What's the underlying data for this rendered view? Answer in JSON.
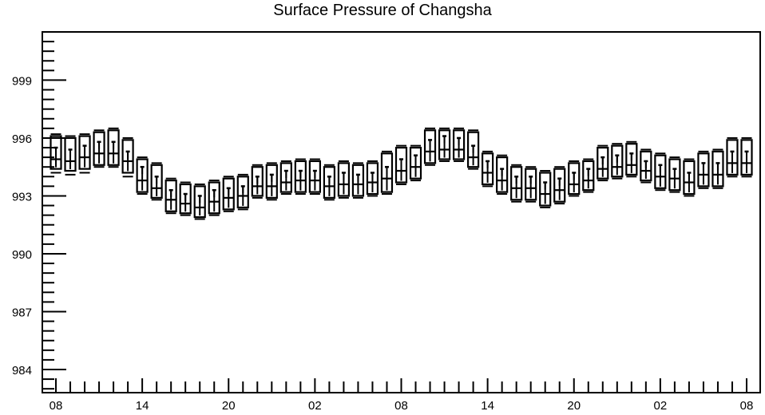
{
  "chart_data": {
    "type": "boxplot",
    "title": "Surface Pressure of Changsha",
    "xlabel": "",
    "ylabel": "",
    "ylim": [
      982.8,
      1001.5
    ],
    "yticks": [
      "984",
      "987",
      "990",
      "993",
      "996",
      "999"
    ],
    "xtick_labels": [
      "08",
      "14",
      "20",
      "02",
      "08",
      "14",
      "20",
      "02",
      "08"
    ],
    "x_hours": [
      0,
      48
    ],
    "grid": false,
    "boxes": [
      {
        "x": 0,
        "min": 994.2,
        "q1": 994.4,
        "median": 994.9,
        "q3": 996.1,
        "max": 996.2,
        "mean": 995.5
      },
      {
        "x": 1,
        "min": 994.1,
        "q1": 994.3,
        "median": 994.8,
        "q3": 996.0,
        "max": 996.1,
        "mean": 995.4
      },
      {
        "x": 2,
        "min": 994.2,
        "q1": 994.4,
        "median": 995.0,
        "q3": 996.1,
        "max": 996.2,
        "mean": 995.6
      },
      {
        "x": 3,
        "min": 994.5,
        "q1": 994.6,
        "median": 995.2,
        "q3": 996.3,
        "max": 996.4,
        "mean": 995.8
      },
      {
        "x": 4,
        "min": 994.5,
        "q1": 994.6,
        "median": 995.2,
        "q3": 996.4,
        "max": 996.5,
        "mean": 995.8
      },
      {
        "x": 5,
        "min": 994.0,
        "q1": 994.2,
        "median": 994.8,
        "q3": 995.9,
        "max": 996.0,
        "mean": 995.3
      },
      {
        "x": 6,
        "min": 993.1,
        "q1": 993.2,
        "median": 993.8,
        "q3": 994.9,
        "max": 995.0,
        "mean": 994.5
      },
      {
        "x": 7,
        "min": 992.8,
        "q1": 992.9,
        "median": 993.4,
        "q3": 994.6,
        "max": 994.7,
        "mean": 994.0
      },
      {
        "x": 8,
        "min": 992.1,
        "q1": 992.2,
        "median": 992.8,
        "q3": 993.8,
        "max": 993.9,
        "mean": 993.3
      },
      {
        "x": 9,
        "min": 992.0,
        "q1": 992.1,
        "median": 992.6,
        "q3": 993.6,
        "max": 993.7,
        "mean": 993.1
      },
      {
        "x": 10,
        "min": 991.8,
        "q1": 991.9,
        "median": 992.4,
        "q3": 993.5,
        "max": 993.6,
        "mean": 993.0
      },
      {
        "x": 11,
        "min": 992.0,
        "q1": 992.1,
        "median": 992.7,
        "q3": 993.7,
        "max": 993.8,
        "mean": 993.3
      },
      {
        "x": 12,
        "min": 992.2,
        "q1": 992.3,
        "median": 992.9,
        "q3": 993.9,
        "max": 994.0,
        "mean": 993.4
      },
      {
        "x": 13,
        "min": 992.3,
        "q1": 992.4,
        "median": 993.0,
        "q3": 994.0,
        "max": 994.1,
        "mean": 993.5
      },
      {
        "x": 14,
        "min": 992.9,
        "q1": 993.0,
        "median": 993.5,
        "q3": 994.5,
        "max": 994.6,
        "mean": 994.0
      },
      {
        "x": 15,
        "min": 992.8,
        "q1": 992.9,
        "median": 993.5,
        "q3": 994.6,
        "max": 994.7,
        "mean": 994.1
      },
      {
        "x": 16,
        "min": 993.1,
        "q1": 993.2,
        "median": 993.7,
        "q3": 994.7,
        "max": 994.8,
        "mean": 994.3
      },
      {
        "x": 17,
        "min": 993.1,
        "q1": 993.2,
        "median": 993.8,
        "q3": 994.8,
        "max": 994.9,
        "mean": 994.3
      },
      {
        "x": 18,
        "min": 993.1,
        "q1": 993.2,
        "median": 993.8,
        "q3": 994.8,
        "max": 994.9,
        "mean": 994.3
      },
      {
        "x": 19,
        "min": 992.8,
        "q1": 992.9,
        "median": 993.5,
        "q3": 994.5,
        "max": 994.6,
        "mean": 994.0
      },
      {
        "x": 20,
        "min": 992.9,
        "q1": 993.0,
        "median": 993.6,
        "q3": 994.7,
        "max": 994.8,
        "mean": 994.2
      },
      {
        "x": 21,
        "min": 992.9,
        "q1": 993.0,
        "median": 993.6,
        "q3": 994.6,
        "max": 994.7,
        "mean": 994.1
      },
      {
        "x": 22,
        "min": 993.0,
        "q1": 993.1,
        "median": 993.7,
        "q3": 994.7,
        "max": 994.8,
        "mean": 994.2
      },
      {
        "x": 23,
        "min": 993.1,
        "q1": 993.2,
        "median": 993.9,
        "q3": 995.2,
        "max": 995.3,
        "mean": 994.5
      },
      {
        "x": 24,
        "min": 993.6,
        "q1": 993.7,
        "median": 994.3,
        "q3": 995.5,
        "max": 995.6,
        "mean": 994.9
      },
      {
        "x": 25,
        "min": 993.8,
        "q1": 993.9,
        "median": 994.5,
        "q3": 995.5,
        "max": 995.6,
        "mean": 995.1
      },
      {
        "x": 26,
        "min": 994.6,
        "q1": 994.7,
        "median": 995.3,
        "q3": 996.4,
        "max": 996.5,
        "mean": 995.9
      },
      {
        "x": 27,
        "min": 994.8,
        "q1": 994.9,
        "median": 995.4,
        "q3": 996.4,
        "max": 996.5,
        "mean": 996.1
      },
      {
        "x": 28,
        "min": 994.8,
        "q1": 994.9,
        "median": 995.4,
        "q3": 996.4,
        "max": 996.5,
        "mean": 996.0
      },
      {
        "x": 29,
        "min": 994.4,
        "q1": 994.5,
        "median": 995.0,
        "q3": 996.3,
        "max": 996.4,
        "mean": 995.6
      },
      {
        "x": 30,
        "min": 993.5,
        "q1": 993.6,
        "median": 994.2,
        "q3": 995.2,
        "max": 995.3,
        "mean": 994.8
      },
      {
        "x": 31,
        "min": 993.1,
        "q1": 993.2,
        "median": 993.8,
        "q3": 995.0,
        "max": 995.1,
        "mean": 994.4
      },
      {
        "x": 32,
        "min": 992.7,
        "q1": 992.8,
        "median": 993.4,
        "q3": 994.5,
        "max": 994.6,
        "mean": 994.0
      },
      {
        "x": 33,
        "min": 992.7,
        "q1": 992.8,
        "median": 993.4,
        "q3": 994.4,
        "max": 994.5,
        "mean": 994.0
      },
      {
        "x": 34,
        "min": 992.4,
        "q1": 992.5,
        "median": 993.1,
        "q3": 994.2,
        "max": 994.3,
        "mean": 993.7
      },
      {
        "x": 35,
        "min": 992.6,
        "q1": 992.7,
        "median": 993.3,
        "q3": 994.4,
        "max": 994.5,
        "mean": 993.9
      },
      {
        "x": 36,
        "min": 993.0,
        "q1": 993.1,
        "median": 993.6,
        "q3": 994.7,
        "max": 994.8,
        "mean": 994.2
      },
      {
        "x": 37,
        "min": 993.2,
        "q1": 993.3,
        "median": 993.8,
        "q3": 994.8,
        "max": 994.9,
        "mean": 994.4
      },
      {
        "x": 38,
        "min": 993.8,
        "q1": 993.9,
        "median": 994.4,
        "q3": 995.5,
        "max": 995.6,
        "mean": 995.0
      },
      {
        "x": 39,
        "min": 993.9,
        "q1": 994.0,
        "median": 994.5,
        "q3": 995.6,
        "max": 995.7,
        "mean": 995.1
      },
      {
        "x": 40,
        "min": 994.0,
        "q1": 994.1,
        "median": 994.6,
        "q3": 995.7,
        "max": 995.8,
        "mean": 995.2
      },
      {
        "x": 41,
        "min": 993.7,
        "q1": 993.8,
        "median": 994.3,
        "q3": 995.3,
        "max": 995.4,
        "mean": 994.8
      },
      {
        "x": 42,
        "min": 993.3,
        "q1": 993.4,
        "median": 994.0,
        "q3": 995.1,
        "max": 995.2,
        "mean": 994.6
      },
      {
        "x": 43,
        "min": 993.2,
        "q1": 993.3,
        "median": 993.9,
        "q3": 994.9,
        "max": 995.0,
        "mean": 994.4
      },
      {
        "x": 44,
        "min": 993.0,
        "q1": 993.1,
        "median": 993.7,
        "q3": 994.8,
        "max": 994.9,
        "mean": 994.2
      },
      {
        "x": 45,
        "min": 993.4,
        "q1": 993.5,
        "median": 994.1,
        "q3": 995.2,
        "max": 995.3,
        "mean": 994.7
      },
      {
        "x": 46,
        "min": 993.4,
        "q1": 993.5,
        "median": 994.1,
        "q3": 995.3,
        "max": 995.4,
        "mean": 994.7
      },
      {
        "x": 47,
        "min": 994.0,
        "q1": 994.1,
        "median": 994.7,
        "q3": 995.9,
        "max": 996.0,
        "mean": 995.3
      },
      {
        "x": 48,
        "min": 994.0,
        "q1": 994.1,
        "median": 994.7,
        "q3": 995.9,
        "max": 996.0,
        "mean": 995.3
      }
    ]
  }
}
